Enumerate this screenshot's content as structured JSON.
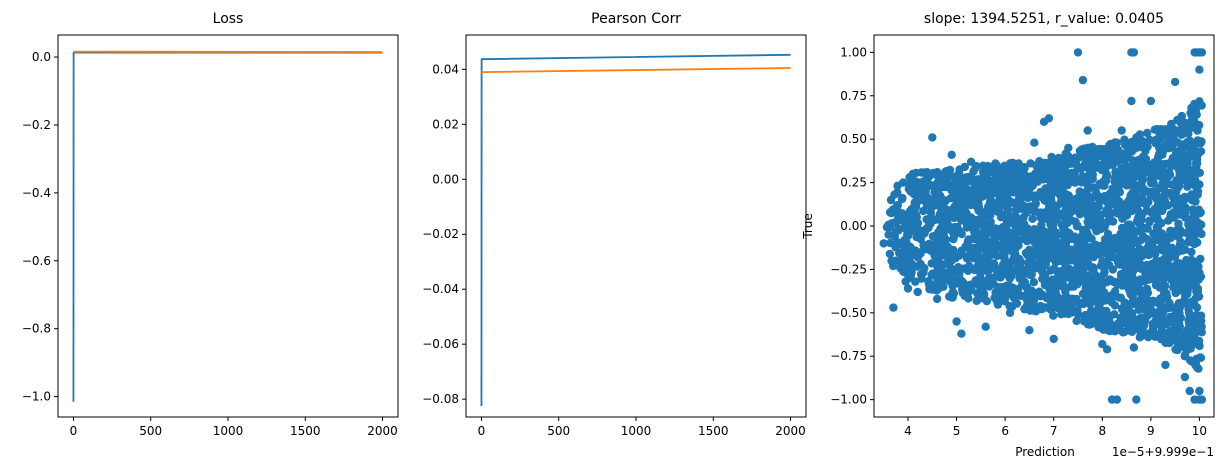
{
  "colors": {
    "series_blue": "#1f77b4",
    "series_orange": "#ff7f0e",
    "axes": "#000000",
    "background": "#ffffff"
  },
  "chart_data": [
    {
      "type": "line",
      "title": "Loss",
      "xlabel": "",
      "ylabel": "",
      "xlim": [
        -100,
        2100
      ],
      "ylim": [
        -1.06,
        0.065
      ],
      "xticks": [
        0,
        500,
        1000,
        1500,
        2000
      ],
      "xtick_labels": [
        "0",
        "500",
        "1000",
        "1500",
        "2000"
      ],
      "yticks": [
        -1.0,
        -0.8,
        -0.6,
        -0.4,
        -0.2,
        0.0
      ],
      "ytick_labels": [
        "−1.0",
        "−0.8",
        "−0.6",
        "−0.4",
        "−0.2",
        "0.0"
      ],
      "grid": false,
      "legend": "none",
      "series": [
        {
          "color": "#1f77b4",
          "x": [
            0,
            1,
            2000
          ],
          "y": [
            -1.015,
            0.013,
            0.013
          ]
        },
        {
          "color": "#ff7f0e",
          "x": [
            0,
            2000
          ],
          "y": [
            0.016,
            0.015
          ]
        }
      ]
    },
    {
      "type": "line",
      "title": "Pearson Corr",
      "xlabel": "",
      "ylabel": "",
      "xlim": [
        -100,
        2100
      ],
      "ylim": [
        -0.0865,
        0.0525
      ],
      "xticks": [
        0,
        500,
        1000,
        1500,
        2000
      ],
      "xtick_labels": [
        "0",
        "500",
        "1000",
        "1500",
        "2000"
      ],
      "yticks": [
        -0.08,
        -0.06,
        -0.04,
        -0.02,
        0.0,
        0.02,
        0.04
      ],
      "ytick_labels": [
        "−0.08",
        "−0.06",
        "−0.04",
        "−0.02",
        "0.00",
        "0.02",
        "0.04"
      ],
      "grid": false,
      "legend": "none",
      "series": [
        {
          "color": "#1f77b4",
          "x": [
            0,
            1,
            2000
          ],
          "y": [
            -0.0825,
            0.0437,
            0.0453
          ]
        },
        {
          "color": "#ff7f0e",
          "x": [
            0,
            2000
          ],
          "y": [
            0.039,
            0.0405
          ]
        }
      ]
    },
    {
      "type": "scatter",
      "title": "slope: 1394.5251, r_value: 0.0405",
      "xlabel": "Prediction",
      "ylabel": "True",
      "x_offset_text": "1e−5+9.999e−1",
      "xlim": [
        3.3,
        10.3
      ],
      "ylim": [
        -1.1,
        1.1
      ],
      "xticks": [
        4,
        5,
        6,
        7,
        8,
        9,
        10
      ],
      "xtick_labels": [
        "4",
        "5",
        "6",
        "7",
        "8",
        "9",
        "10"
      ],
      "yticks": [
        -1.0,
        -0.75,
        -0.5,
        -0.25,
        0.0,
        0.25,
        0.5,
        0.75,
        1.0
      ],
      "ytick_labels": [
        "−1.00",
        "−0.75",
        "−0.50",
        "−0.25",
        "0.00",
        "0.25",
        "0.50",
        "0.75",
        "1.00"
      ],
      "grid": false,
      "legend": "none",
      "color": "#1f77b4",
      "points": [
        [
          3.5,
          -0.1
        ],
        [
          3.6,
          -0.05
        ],
        [
          3.65,
          0.15
        ],
        [
          3.7,
          -0.47
        ],
        [
          3.72,
          0.18
        ],
        [
          3.75,
          -0.2
        ],
        [
          3.8,
          0.05
        ],
        [
          3.9,
          0.25
        ],
        [
          3.95,
          -0.32
        ],
        [
          4.0,
          -0.36
        ],
        [
          4.1,
          0.3
        ],
        [
          4.2,
          -0.38
        ],
        [
          4.5,
          0.51
        ],
        [
          4.6,
          -0.42
        ],
        [
          4.9,
          0.41
        ],
        [
          5.0,
          -0.55
        ],
        [
          5.1,
          -0.62
        ],
        [
          5.3,
          0.37
        ],
        [
          5.6,
          -0.58
        ],
        [
          5.8,
          0.36
        ],
        [
          6.1,
          -0.5
        ],
        [
          6.5,
          -0.6
        ],
        [
          6.6,
          0.48
        ],
        [
          6.8,
          0.6
        ],
        [
          6.9,
          0.62
        ],
        [
          7.0,
          -0.65
        ],
        [
          7.3,
          0.45
        ],
        [
          7.5,
          1.0
        ],
        [
          7.6,
          0.84
        ],
        [
          7.7,
          0.55
        ],
        [
          8.0,
          -0.68
        ],
        [
          8.1,
          -0.71
        ],
        [
          8.2,
          -1.0
        ],
        [
          8.3,
          -1.0
        ],
        [
          8.4,
          0.55
        ],
        [
          8.6,
          1.0
        ],
        [
          8.65,
          1.0
        ],
        [
          8.6,
          0.72
        ],
        [
          8.65,
          -0.7
        ],
        [
          8.7,
          -1.0
        ],
        [
          9.0,
          0.72
        ],
        [
          9.3,
          -0.8
        ],
        [
          9.5,
          0.83
        ],
        [
          9.7,
          -0.87
        ],
        [
          9.8,
          -0.95
        ],
        [
          9.9,
          1.0
        ],
        [
          9.95,
          1.0
        ],
        [
          10.0,
          1.0
        ],
        [
          10.05,
          1.0
        ],
        [
          9.9,
          -1.0
        ],
        [
          10.0,
          -1.0
        ],
        [
          10.05,
          -1.0
        ],
        [
          10.0,
          0.9
        ],
        [
          10.0,
          -0.95
        ]
      ],
      "cloud": [
        [
          3.55,
          -0.2,
          0.22
        ],
        [
          3.85,
          -0.28,
          0.27
        ],
        [
          4.2,
          -0.33,
          0.31
        ],
        [
          4.6,
          -0.39,
          0.33
        ],
        [
          5.0,
          -0.42,
          0.34
        ],
        [
          5.5,
          -0.44,
          0.35
        ],
        [
          6.0,
          -0.46,
          0.36
        ],
        [
          6.5,
          -0.49,
          0.38
        ],
        [
          7.0,
          -0.52,
          0.4
        ],
        [
          7.5,
          -0.55,
          0.44
        ],
        [
          8.0,
          -0.6,
          0.47
        ],
        [
          8.5,
          -0.62,
          0.5
        ],
        [
          9.0,
          -0.66,
          0.55
        ],
        [
          9.5,
          -0.72,
          0.6
        ],
        [
          9.9,
          -0.8,
          0.72
        ],
        [
          10.05,
          -0.86,
          0.8
        ]
      ]
    }
  ]
}
